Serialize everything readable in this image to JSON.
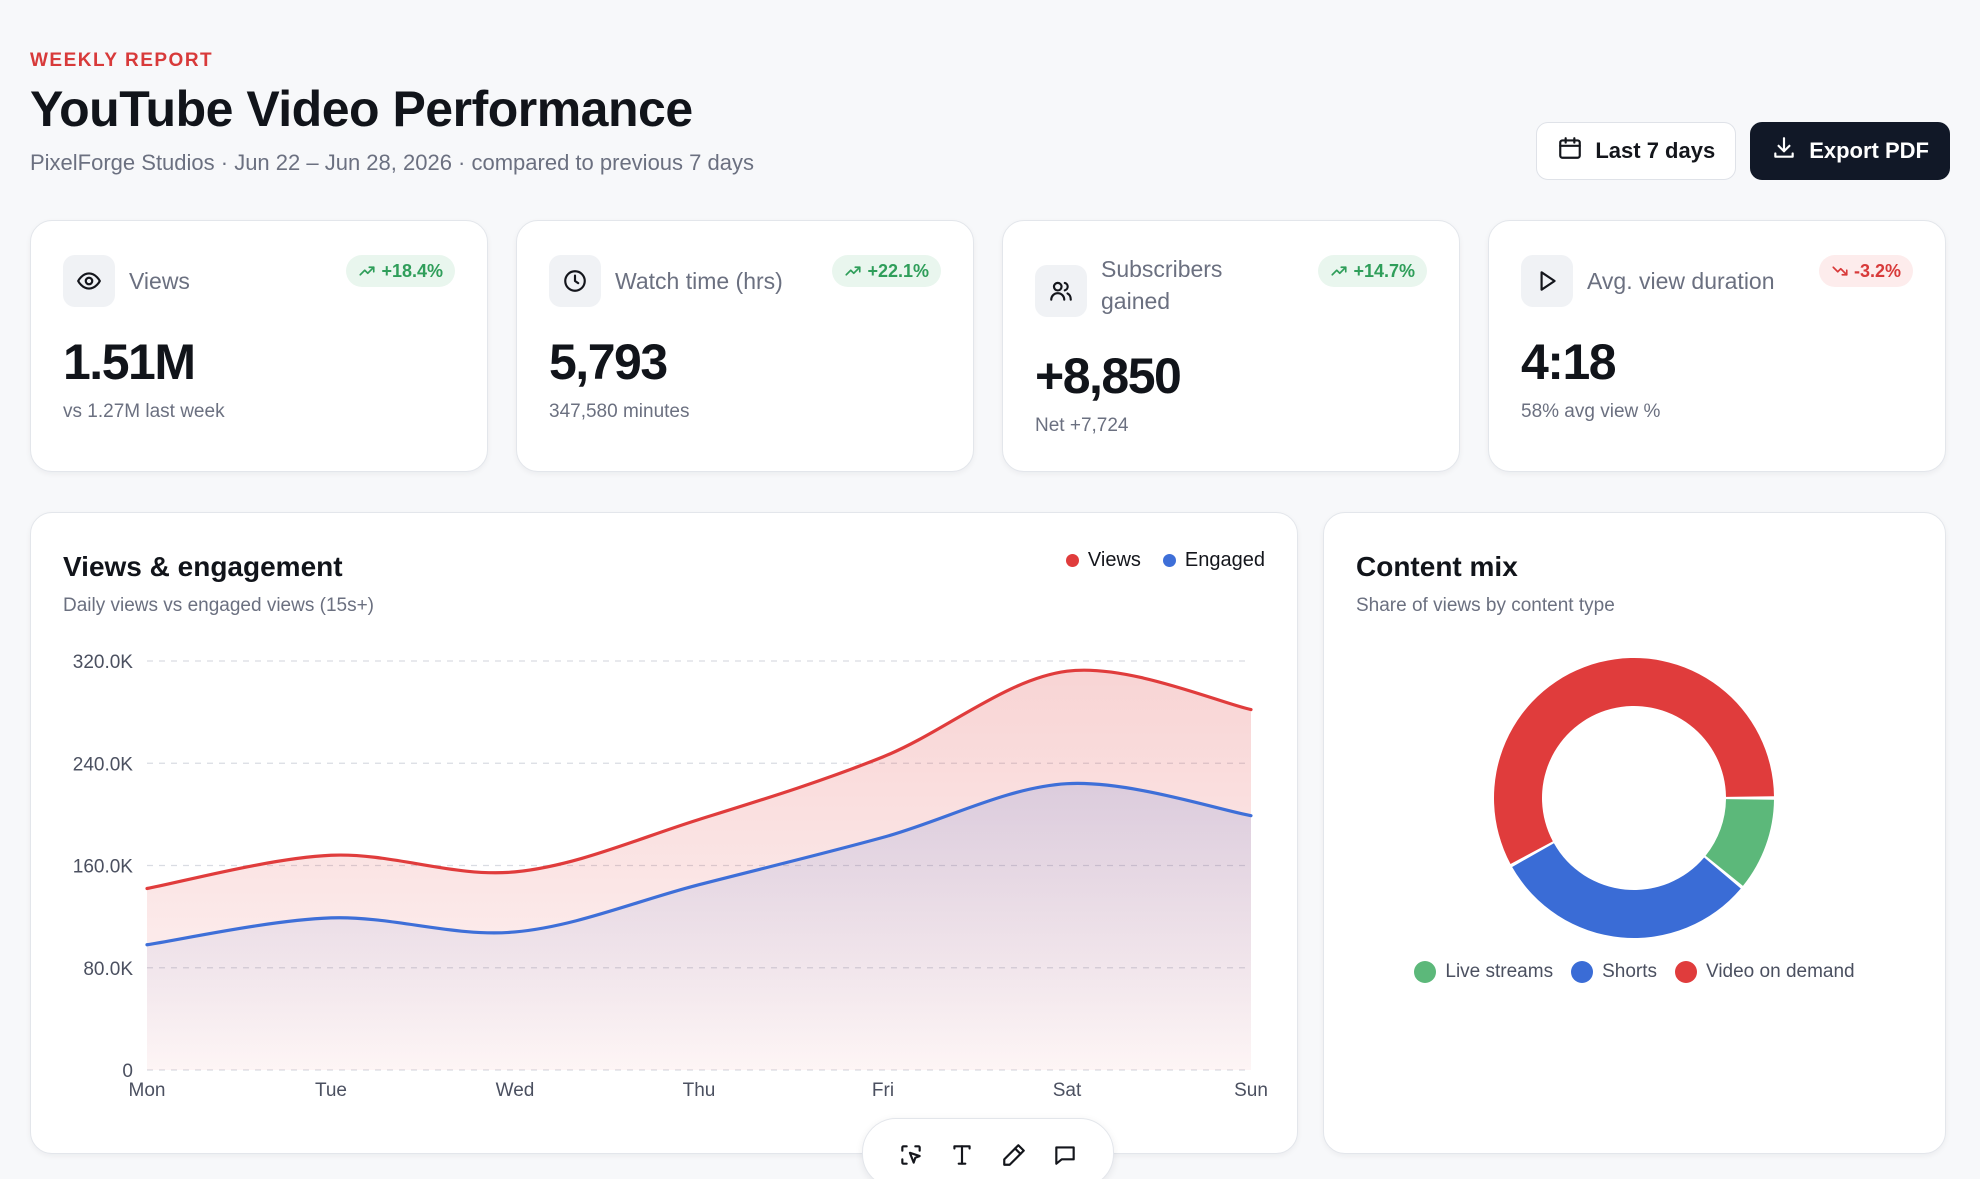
{
  "header": {
    "eyebrow": "WEEKLY REPORT",
    "title": "YouTube Video Performance",
    "subtitle": "PixelForge Studios · Jun 22 – Jun 28, 2026 · compared to previous 7 days",
    "range_button": "Last 7 days",
    "export_button": "Export PDF"
  },
  "kpis": [
    {
      "label": "Views",
      "icon": "eye-icon",
      "change": "+18.4%",
      "trend": "up",
      "value": "1.51M",
      "sub": "vs 1.27M last week"
    },
    {
      "label": "Watch time (hrs)",
      "icon": "clock-icon",
      "change": "+22.1%",
      "trend": "up",
      "value": "5,793",
      "sub": "347,580 minutes"
    },
    {
      "label": "Subscribers gained",
      "icon": "users-icon",
      "change": "+14.7%",
      "trend": "up",
      "value": "+8,850",
      "sub": "Net +7,724"
    },
    {
      "label": "Avg. view duration",
      "icon": "play-icon",
      "change": "-3.2%",
      "trend": "down",
      "value": "4:18",
      "sub": "58% avg view %"
    }
  ],
  "engagement_card": {
    "title": "Views & engagement",
    "subtitle": "Daily views vs engaged views (15s+)"
  },
  "mix_card": {
    "title": "Content mix",
    "subtitle": "Share of views by content type"
  },
  "colors": {
    "views": "#e03c3c",
    "engaged": "#3e6fd8",
    "live": "#5cb87a",
    "shorts": "#3a6cd6",
    "vod": "#e03c3c"
  },
  "chart_data": [
    {
      "type": "area",
      "categories": [
        "Mon",
        "Tue",
        "Wed",
        "Thu",
        "Fri",
        "Sat",
        "Sun"
      ],
      "series": [
        {
          "name": "Views",
          "values": [
            142000,
            168000,
            155000,
            196000,
            245000,
            312000,
            282000
          ]
        },
        {
          "name": "Engaged",
          "values": [
            98000,
            119000,
            108000,
            145000,
            182000,
            224000,
            199000
          ]
        }
      ],
      "ytick_labels": [
        "0",
        "80.0K",
        "160.0K",
        "240.0K",
        "320.0K"
      ],
      "yticks": [
        0,
        80000,
        160000,
        240000,
        320000
      ],
      "ylim": [
        0,
        320000
      ],
      "grid": true,
      "legend": "top-right"
    },
    {
      "type": "pie",
      "donut": true,
      "categories": [
        "Live streams",
        "Shorts",
        "Video on demand"
      ],
      "values": [
        11,
        31,
        58
      ],
      "legend": "bottom"
    }
  ],
  "toolbar": {
    "tools": [
      "select-icon",
      "text-icon",
      "pen-icon",
      "comment-icon"
    ]
  }
}
